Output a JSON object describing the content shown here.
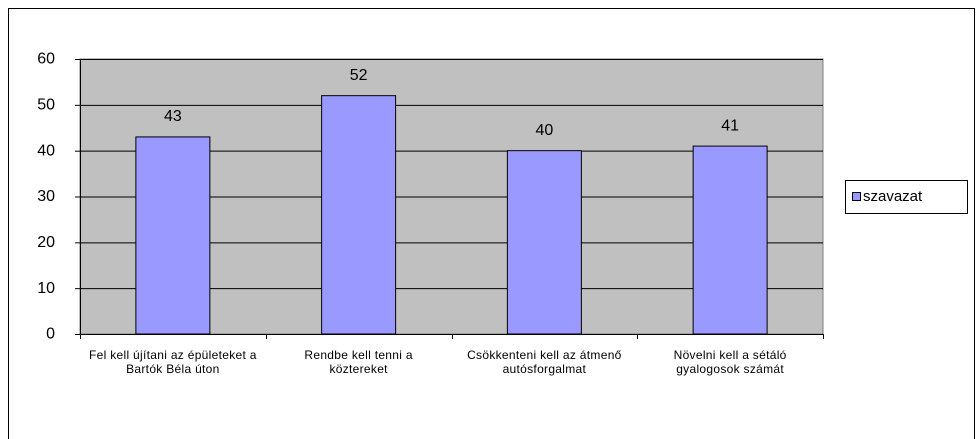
{
  "chart_data": {
    "type": "bar",
    "categories": [
      "Fel kell újítani az épületeket a Bartók Béla úton",
      "Rendbe kell tenni a köztereket",
      "Csökkenteni kell az átmenő autósforgalmat",
      "Növelni kell a sétáló gyalogosok számát"
    ],
    "series": [
      {
        "name": "szavazat",
        "color": "#9999ff",
        "values": [
          43,
          52,
          40,
          41
        ]
      }
    ],
    "ylim": [
      0,
      60
    ],
    "yticks": [
      0,
      10,
      20,
      30,
      40,
      50,
      60
    ],
    "grid": true,
    "legend": "right"
  }
}
